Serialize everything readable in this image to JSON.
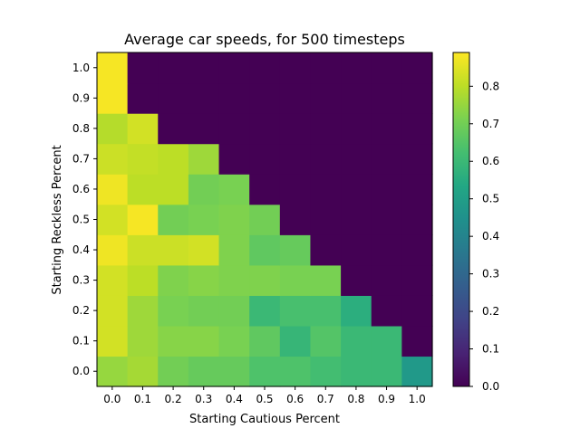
{
  "chart_data": {
    "type": "heatmap",
    "title": "Average car speeds, for 500 timesteps",
    "xlabel": "Starting Cautious Percent",
    "ylabel": "Starting Reckless Percent",
    "x_ticks": [
      "0.0",
      "0.1",
      "0.2",
      "0.3",
      "0.4",
      "0.5",
      "0.6",
      "0.7",
      "0.8",
      "0.9",
      "1.0"
    ],
    "y_ticks": [
      "0.0",
      "0.1",
      "0.2",
      "0.3",
      "0.4",
      "0.5",
      "0.6",
      "0.7",
      "0.8",
      "0.9",
      "1.0"
    ],
    "colormap": "viridis",
    "vmin": 0.0,
    "vmax": 0.89,
    "colorbar_ticks": [
      "0.0",
      "0.1",
      "0.2",
      "0.3",
      "0.4",
      "0.5",
      "0.6",
      "0.7",
      "0.8"
    ],
    "values_by_row_y": [
      [
        0.75,
        0.77,
        0.7,
        0.68,
        0.68,
        0.64,
        0.64,
        0.62,
        0.6,
        0.6,
        0.48
      ],
      [
        0.83,
        0.76,
        0.73,
        0.73,
        0.71,
        0.67,
        0.59,
        0.65,
        0.6,
        0.6,
        0.0
      ],
      [
        0.83,
        0.76,
        0.71,
        0.7,
        0.7,
        0.6,
        0.63,
        0.63,
        0.56,
        0.0,
        0.0
      ],
      [
        0.83,
        0.8,
        0.72,
        0.73,
        0.72,
        0.72,
        0.71,
        0.71,
        0.0,
        0.0,
        0.0
      ],
      [
        0.87,
        0.82,
        0.82,
        0.83,
        0.72,
        0.67,
        0.68,
        0.0,
        0.0,
        0.0,
        0.0
      ],
      [
        0.83,
        0.88,
        0.7,
        0.71,
        0.72,
        0.7,
        0.0,
        0.0,
        0.0,
        0.0,
        0.0
      ],
      [
        0.87,
        0.8,
        0.8,
        0.7,
        0.71,
        0.0,
        0.0,
        0.0,
        0.0,
        0.0,
        0.0
      ],
      [
        0.82,
        0.81,
        0.8,
        0.76,
        0.0,
        0.0,
        0.0,
        0.0,
        0.0,
        0.0,
        0.0
      ],
      [
        0.79,
        0.83,
        0.0,
        0.0,
        0.0,
        0.0,
        0.0,
        0.0,
        0.0,
        0.0,
        0.0
      ],
      [
        0.88,
        0.0,
        0.0,
        0.0,
        0.0,
        0.0,
        0.0,
        0.0,
        0.0,
        0.0,
        0.0
      ],
      [
        0.88,
        0.0,
        0.0,
        0.0,
        0.0,
        0.0,
        0.0,
        0.0,
        0.0,
        0.0,
        0.0
      ]
    ]
  }
}
